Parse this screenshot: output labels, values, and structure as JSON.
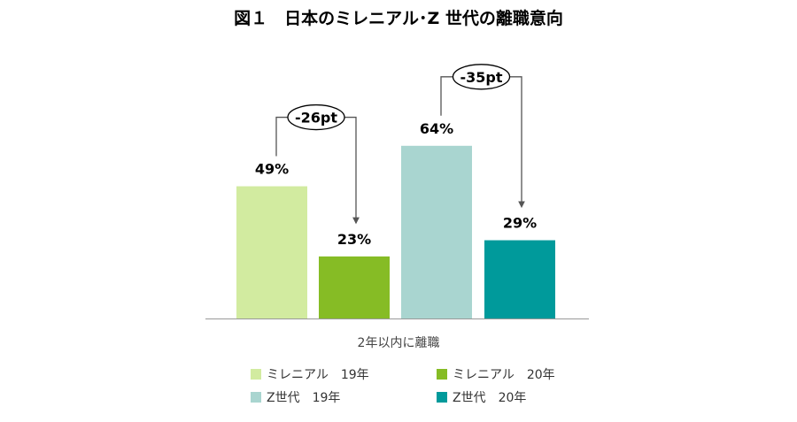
{
  "chart_data": {
    "type": "bar",
    "title": "図１　日本のミレニアル･Z 世代の離職意向",
    "xlabel": "2年以内に離職",
    "ylabel": "",
    "ylim": [
      0,
      100
    ],
    "unit": "%",
    "grid": false,
    "legend_position": "bottom",
    "series": [
      {
        "name": "ミレニアル　19年",
        "value": 49,
        "label": "49%",
        "color": "#d2eba0"
      },
      {
        "name": "ミレニアル　20年",
        "value": 23,
        "label": "23%",
        "color": "#86bc25"
      },
      {
        "name": "Z世代　19年",
        "value": 64,
        "label": "64%",
        "color": "#a9d5d0"
      },
      {
        "name": "Z世代　20年",
        "value": 29,
        "label": "29%",
        "color": "#009a9b"
      }
    ],
    "annotations": [
      {
        "from": 0,
        "to": 1,
        "text": "-26pt"
      },
      {
        "from": 2,
        "to": 3,
        "text": "-35pt"
      }
    ]
  }
}
